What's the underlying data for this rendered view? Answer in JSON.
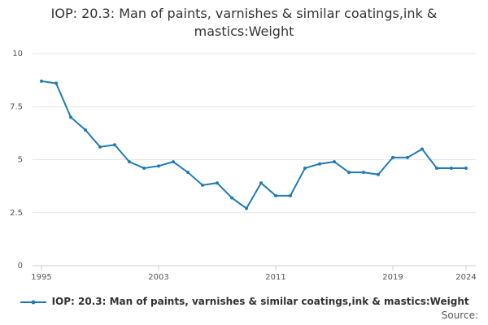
{
  "chart_data": {
    "type": "line",
    "title": "IOP: 20.3: Man of paints, varnishes & similar coatings,ink & mastics:Weight",
    "x": [
      1995,
      1996,
      1997,
      1998,
      1999,
      2000,
      2001,
      2002,
      2003,
      2004,
      2005,
      2006,
      2007,
      2008,
      2009,
      2010,
      2011,
      2012,
      2013,
      2014,
      2015,
      2016,
      2017,
      2018,
      2019,
      2020,
      2021,
      2022,
      2023,
      2024
    ],
    "series": [
      {
        "name": "IOP: 20.3: Man of paints, varnishes & similar coatings,ink & mastics:Weight",
        "color": "#1f7bb6",
        "values": [
          8.7,
          8.6,
          7.0,
          6.4,
          5.6,
          5.7,
          4.9,
          4.6,
          4.7,
          4.9,
          4.4,
          3.8,
          3.9,
          3.2,
          2.7,
          3.9,
          3.3,
          3.3,
          4.6,
          4.8,
          4.9,
          4.4,
          4.4,
          4.3,
          5.1,
          5.1,
          5.5,
          4.6,
          4.6,
          4.6
        ]
      }
    ],
    "xlim": [
      1995,
      2024
    ],
    "xticks": [
      1995,
      2003,
      2011,
      2019,
      2024
    ],
    "ylim": [
      0,
      10
    ],
    "yticks": [
      0,
      2.5,
      5,
      7.5,
      10
    ],
    "grid": true,
    "source": "Source:"
  }
}
